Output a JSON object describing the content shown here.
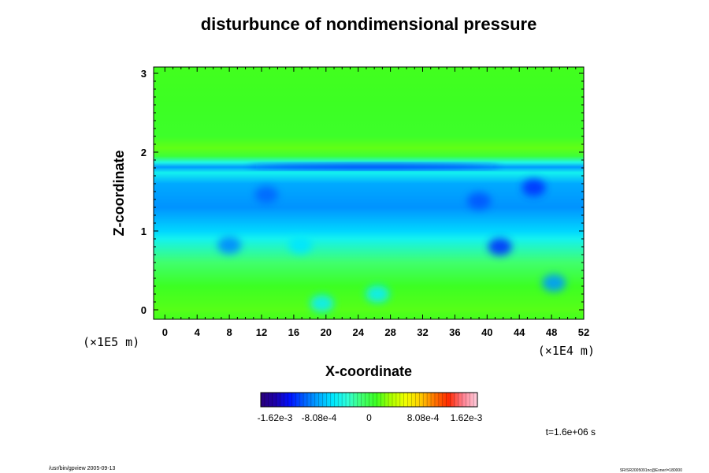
{
  "chart_data": {
    "type": "heatmap",
    "title": "disturbunce of nondimensional pressure",
    "xlabel": "X-coordinate",
    "ylabel": "Z-coordinate",
    "x_unit": "(×1E4 m)",
    "y_unit": "(×1E5 m)",
    "xlim": [
      -1.4,
      52
    ],
    "ylim": [
      -0.12,
      3.08
    ],
    "x_ticks": [
      "0",
      "4",
      "8",
      "12",
      "16",
      "20",
      "24",
      "28",
      "32",
      "36",
      "40",
      "44",
      "48",
      "52"
    ],
    "y_ticks": [
      "0",
      "1",
      "2",
      "3"
    ],
    "colorbar": {
      "tick_labels": [
        "-1.62e-3",
        "-8.08e-4",
        "0",
        "8.08e-4",
        "1.62e-3"
      ],
      "tick_values": [
        -0.00162,
        -0.000808,
        0,
        0.000808,
        0.00162
      ],
      "colors": [
        "#2a007a",
        "#1d00a8",
        "#0010ff",
        "#0060ff",
        "#00a8ff",
        "#00e8ff",
        "#30ffd8",
        "#40ff70",
        "#3cff20",
        "#aaff00",
        "#f0ff00",
        "#ffd000",
        "#ff7800",
        "#ff2800",
        "#ff8090",
        "#ffd0e0"
      ]
    },
    "field_rows": [
      {
        "z": 3.08,
        "value": 0.00012
      },
      {
        "z": 2.6,
        "value": 0.0001
      },
      {
        "z": 2.2,
        "value": 8e-05
      },
      {
        "z": 2.05,
        "value": 0.00018
      },
      {
        "z": 1.95,
        "value": 4e-05
      },
      {
        "z": 1.87,
        "value": -0.0004
      },
      {
        "z": 1.81,
        "value": -0.0008
      },
      {
        "z": 1.74,
        "value": -0.00045
      },
      {
        "z": 1.6,
        "value": -0.00075
      },
      {
        "z": 1.3,
        "value": -0.00082
      },
      {
        "z": 1.0,
        "value": -0.0006
      },
      {
        "z": 0.9,
        "value": -0.00045
      },
      {
        "z": 0.6,
        "value": -0.0001
      },
      {
        "z": 0.3,
        "value": 0.0001
      },
      {
        "z": 0.0,
        "value": 0.00016
      },
      {
        "z": -0.12,
        "value": 0.00012
      }
    ],
    "features": [
      {
        "x": 8,
        "z": 0.82,
        "value": -0.00085
      },
      {
        "x": 16.8,
        "z": 0.82,
        "value": -0.00055
      },
      {
        "x": 41.6,
        "z": 0.8,
        "value": -0.0011
      },
      {
        "x": 48.3,
        "z": 0.34,
        "value": -0.0008
      },
      {
        "x": 45.8,
        "z": 1.55,
        "value": -0.0011
      },
      {
        "x": 39,
        "z": 1.38,
        "value": -0.001
      },
      {
        "x": 12.6,
        "z": 1.46,
        "value": -0.00095
      },
      {
        "x": 26.4,
        "z": 0.2,
        "value": -0.0005
      },
      {
        "x": 19.5,
        "z": 0.08,
        "value": -0.0005
      },
      {
        "x": 26,
        "z": 1.82,
        "value": -0.00115
      }
    ],
    "time_label": "t=1.6e+06 s"
  },
  "footer": {
    "left": "/usr/bin/gpview 2005-09-13",
    "right": "SR/SR2005091nc@Exner/=180000"
  }
}
